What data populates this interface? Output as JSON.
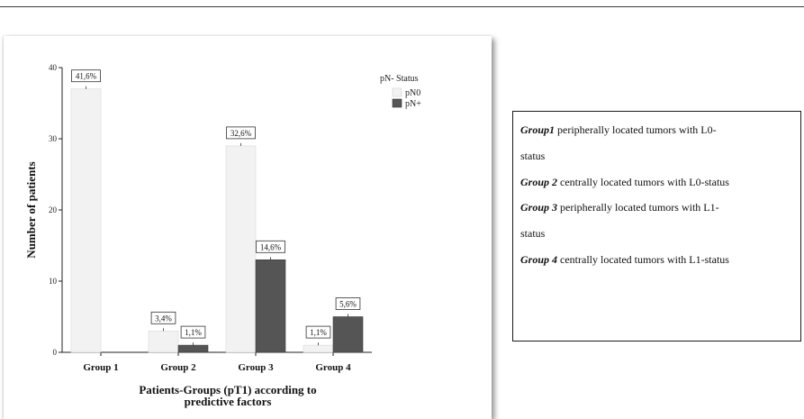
{
  "chart_data": {
    "type": "bar",
    "title": "",
    "xlabel": "Patients-Groups (pT1) according to predictive factors",
    "xlabel_lines": [
      "Patients-Groups (pT1) according to",
      "predictive factors"
    ],
    "ylabel": "Number of patients",
    "ylim": [
      0,
      40
    ],
    "yticks": [
      "0",
      "10",
      "20",
      "30",
      "40"
    ],
    "categories": [
      "Group 1",
      "Group 2",
      "Group 3",
      "Group 4"
    ],
    "legend_title": "pN- Status",
    "legend_position": "top-right",
    "series": [
      {
        "name": "pN0",
        "color": "#f2f2f2",
        "values": [
          37,
          3,
          29,
          1
        ],
        "labels": [
          "41,6%",
          "3,4%",
          "32,6%",
          "1,1%"
        ]
      },
      {
        "name": "pN+",
        "color": "#555555",
        "values": [
          0,
          1,
          13,
          5
        ],
        "labels": [
          "",
          "1,1%",
          "14,6%",
          "5,6%"
        ]
      }
    ]
  },
  "caption": {
    "lines": [
      {
        "bold": "Group1",
        "text": " peripherally  located tumors with  L0-"
      },
      {
        "bold": "",
        "text": "status"
      },
      {
        "bold": "Group 2",
        "text": " centrally  located tumors with L0-status"
      },
      {
        "bold": "Group 3",
        "text": " peripherally  located tumors with  L1-"
      },
      {
        "bold": "",
        "text": "status"
      },
      {
        "bold": "Group 4",
        "text": " centrally  located tumors with L1-status"
      }
    ]
  }
}
